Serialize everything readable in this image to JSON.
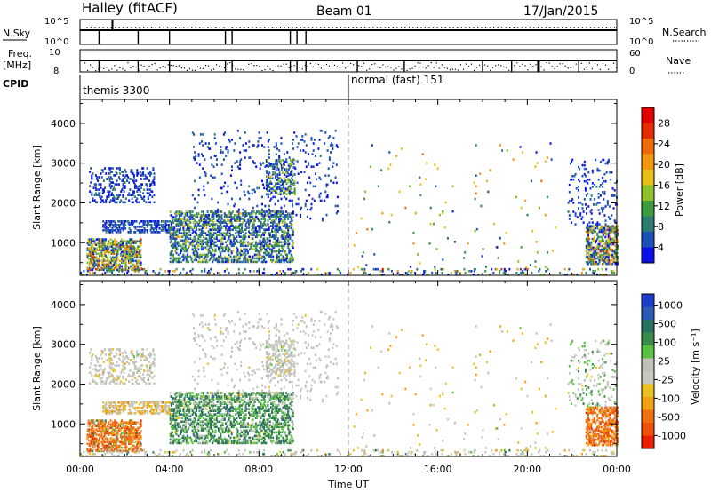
{
  "header": {
    "title": "Halley (fitACF)",
    "beam": "Beam 01",
    "date": "17/Jan/2015"
  },
  "strips": {
    "nsky_label": "N.Sky",
    "nsearch_label": "N.Search",
    "nsky_ticks": [
      "10^5",
      "10^0"
    ],
    "nsearch_ticks": [
      "10^5",
      "10^0"
    ],
    "freq_label": "Freq.",
    "freq_unit": "[MHz]",
    "freq_ticks": [
      "10",
      "8"
    ],
    "nave_label": "Nave",
    "nave_ticks": [
      "60",
      "0"
    ],
    "cpid_label": "CPID",
    "cpid_segments": [
      {
        "name": "themis 3300",
        "start_hour": 0,
        "end_hour": 12
      },
      {
        "name": "normal (fast) 151",
        "start_hour": 12,
        "end_hour": 24
      }
    ]
  },
  "chart_data": [
    {
      "type": "heatmap",
      "panel": "power",
      "ylabel": "Slant Range [km]",
      "yticks": [
        1000,
        2000,
        3000,
        4000
      ],
      "ylim": [
        180,
        4600
      ],
      "xlim": [
        0,
        24
      ],
      "colorbar": {
        "label": "Power [dB]",
        "ticks": [
          "4",
          "8",
          "12",
          "16",
          "20",
          "24",
          "28"
        ],
        "colors": [
          "#0a10e6",
          "#1c4fb8",
          "#2d7a70",
          "#3e9a3e",
          "#8fc02a",
          "#e6c019",
          "#f09810",
          "#f06a08",
          "#e62a00",
          "#e00000"
        ]
      },
      "regions": [
        {
          "t0": 0.4,
          "t1": 3.3,
          "r0": 2000,
          "r1": 2900,
          "density": 0.22,
          "weights": [
            0.6,
            0.9,
            0.2,
            0.05,
            0,
            0,
            0,
            0,
            0,
            0
          ]
        },
        {
          "t0": 0.3,
          "t1": 2.7,
          "r0": 300,
          "r1": 1100,
          "density": 0.55,
          "weights": [
            0.4,
            0.6,
            0.5,
            0.5,
            0.6,
            0.5,
            0.4,
            0.2,
            0.1,
            0
          ]
        },
        {
          "t0": 1.0,
          "t1": 4.0,
          "r0": 1250,
          "r1": 1550,
          "density": 0.4,
          "weights": [
            0.4,
            0.8,
            0.2,
            0.05,
            0,
            0,
            0,
            0,
            0,
            0
          ]
        },
        {
          "t0": 4.0,
          "t1": 9.5,
          "r0": 500,
          "r1": 1800,
          "density": 0.38,
          "weights": [
            0.3,
            0.7,
            0.6,
            0.4,
            0.3,
            0.1,
            0.05,
            0,
            0,
            0
          ]
        },
        {
          "t0": 5.0,
          "t1": 11.5,
          "r0": 1500,
          "r1": 3800,
          "density": 0.05,
          "weights": [
            0.5,
            0.9,
            0.1,
            0,
            0,
            0,
            0,
            0,
            0,
            0
          ]
        },
        {
          "t0": 8.3,
          "t1": 9.6,
          "r0": 2200,
          "r1": 3100,
          "density": 0.3,
          "weights": [
            0.4,
            0.6,
            0.4,
            0.3,
            0.3,
            0.1,
            0,
            0,
            0,
            0
          ]
        },
        {
          "t0": 22.6,
          "t1": 24.0,
          "r0": 450,
          "r1": 1400,
          "density": 0.5,
          "weights": [
            0.3,
            0.5,
            0.4,
            0.3,
            0.3,
            0.3,
            0.3,
            0.2,
            0.05,
            0
          ]
        },
        {
          "t0": 21.8,
          "t1": 24.0,
          "r0": 1400,
          "r1": 3100,
          "density": 0.08,
          "weights": [
            0.5,
            0.8,
            0.1,
            0,
            0,
            0,
            0,
            0,
            0,
            0
          ]
        },
        {
          "t0": 0,
          "t1": 24,
          "r0": 180,
          "r1": 330,
          "density": 0.12,
          "weights": [
            0.3,
            0.3,
            0.3,
            0.3,
            0.2,
            0.1,
            0.1,
            0.05,
            0.05,
            0.02
          ]
        },
        {
          "t0": 12,
          "t1": 21.5,
          "r0": 330,
          "r1": 3500,
          "density": 0.008,
          "weights": [
            0.2,
            0.3,
            0.3,
            0.3,
            0.4,
            0.5,
            0.3,
            0.1,
            0,
            0
          ]
        }
      ]
    },
    {
      "type": "heatmap",
      "panel": "velocity",
      "ylabel": "Slant Range [km]",
      "yticks": [
        1000,
        2000,
        3000,
        4000
      ],
      "ylim": [
        180,
        4600
      ],
      "xlim": [
        0,
        24
      ],
      "xticks": [
        "00:00",
        "04:00",
        "08:00",
        "12:00",
        "16:00",
        "20:00",
        "00:00"
      ],
      "xlabel": "Time UT",
      "colorbar": {
        "label": "Velocity [m s⁻¹]",
        "ticks": [
          "1000",
          "500",
          "100",
          "25",
          "-25",
          "-100",
          "-500",
          "-1000"
        ],
        "colors": [
          "#1a3cc8",
          "#2a5ab4",
          "#2a7060",
          "#3a8a4a",
          "#58c040",
          "#c0c0b8",
          "#c8c8c0",
          "#e8c020",
          "#f0a010",
          "#f07010",
          "#f05008",
          "#e81e00"
        ]
      },
      "regions": [
        {
          "t0": 0.4,
          "t1": 3.3,
          "r0": 2000,
          "r1": 2900,
          "density": 0.22,
          "weights": [
            0,
            0,
            0,
            0,
            0.05,
            0.9,
            0.5,
            0.2,
            0.05,
            0,
            0,
            0
          ]
        },
        {
          "t0": 0.3,
          "t1": 2.7,
          "r0": 300,
          "r1": 1100,
          "density": 0.55,
          "weights": [
            0,
            0,
            0.1,
            0.1,
            0.05,
            0.1,
            0.05,
            0.1,
            0.3,
            0.9,
            0.4,
            0.05
          ]
        },
        {
          "t0": 1.0,
          "t1": 4.0,
          "r0": 1250,
          "r1": 1550,
          "density": 0.4,
          "weights": [
            0,
            0,
            0,
            0,
            0,
            0.6,
            0.3,
            0.5,
            0.4,
            0.1,
            0,
            0
          ]
        },
        {
          "t0": 4.0,
          "t1": 9.5,
          "r0": 500,
          "r1": 1800,
          "density": 0.38,
          "weights": [
            0,
            0.05,
            0.6,
            0.5,
            0.5,
            0.2,
            0.1,
            0.05,
            0,
            0,
            0,
            0
          ]
        },
        {
          "t0": 5.0,
          "t1": 11.5,
          "r0": 1500,
          "r1": 3800,
          "density": 0.05,
          "weights": [
            0,
            0,
            0,
            0,
            0,
            0.9,
            0.6,
            0.05,
            0,
            0,
            0,
            0
          ]
        },
        {
          "t0": 8.3,
          "t1": 9.6,
          "r0": 2200,
          "r1": 3100,
          "density": 0.3,
          "weights": [
            0,
            0,
            0,
            0,
            0.1,
            0.9,
            0.5,
            0.1,
            0,
            0,
            0,
            0
          ]
        },
        {
          "t0": 22.6,
          "t1": 24.0,
          "r0": 450,
          "r1": 1400,
          "density": 0.5,
          "weights": [
            0,
            0,
            0,
            0,
            0,
            0.1,
            0.05,
            0.1,
            0.3,
            0.9,
            0.5,
            0.1
          ]
        },
        {
          "t0": 21.8,
          "t1": 24.0,
          "r0": 1400,
          "r1": 3100,
          "density": 0.08,
          "weights": [
            0,
            0,
            0.1,
            0.2,
            0.4,
            0.5,
            0.3,
            0.1,
            0,
            0,
            0,
            0
          ]
        },
        {
          "t0": 0,
          "t1": 24,
          "r0": 180,
          "r1": 330,
          "density": 0.12,
          "weights": [
            0,
            0,
            0.05,
            0.1,
            0.1,
            0.6,
            0.5,
            0.2,
            0.1,
            0.05,
            0,
            0
          ]
        },
        {
          "t0": 12,
          "t1": 21.5,
          "r0": 330,
          "r1": 3500,
          "density": 0.008,
          "weights": [
            0,
            0,
            0,
            0,
            0.1,
            0.4,
            0.3,
            0.6,
            0.3,
            0,
            0,
            0
          ]
        }
      ]
    }
  ]
}
